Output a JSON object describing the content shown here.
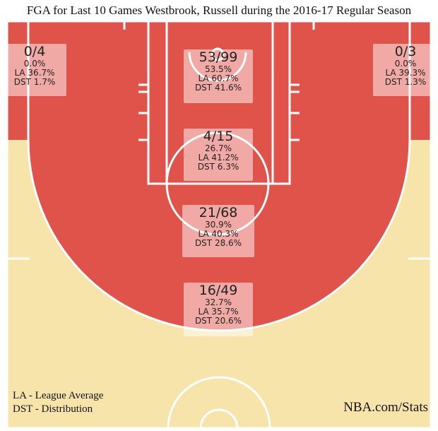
{
  "chart_data": {
    "type": "shot-chart",
    "title": "FGA for Last 10 Games Westbrook, Russell during the 2016-17 Regular Season",
    "zones": [
      {
        "id": "left-corner-3",
        "fgm_fga": "0/4",
        "fg_pct": "0.0%",
        "la": "LA 36.7%",
        "dst": "DST 1.7%",
        "fill": "#e0534b"
      },
      {
        "id": "paint-non-ra",
        "fgm_fga": "53/99",
        "fg_pct": "53.5%",
        "la": "LA 60.7%",
        "dst": "DST 41.6%",
        "fill": "#e0534b"
      },
      {
        "id": "right-corner-3",
        "fgm_fga": "0/3",
        "fg_pct": "0.0%",
        "la": "LA 39.3%",
        "dst": "DST 1.3%",
        "fill": "#e0534b"
      },
      {
        "id": "free-throw-circle",
        "fgm_fga": "4/15",
        "fg_pct": "26.7%",
        "la": "LA 41.2%",
        "dst": "DST 6.3%",
        "fill": "#e0534b"
      },
      {
        "id": "mid-range",
        "fgm_fga": "21/68",
        "fg_pct": "30.9%",
        "la": "LA 40.3%",
        "dst": "DST 28.6%",
        "fill": "#e0534b"
      },
      {
        "id": "above-break-3",
        "fgm_fga": "16/49",
        "fg_pct": "32.7%",
        "la": "LA 35.7%",
        "dst": "DST 20.6%",
        "fill": "#f7e4aa"
      }
    ],
    "colors": {
      "cold": "#e0534b",
      "neutral": "#f7e4aa",
      "lines": "#ffffff"
    }
  },
  "legend": {
    "la": "LA - League Average",
    "dst": "DST - Distribution"
  },
  "brand": "NBA.com/Stats"
}
